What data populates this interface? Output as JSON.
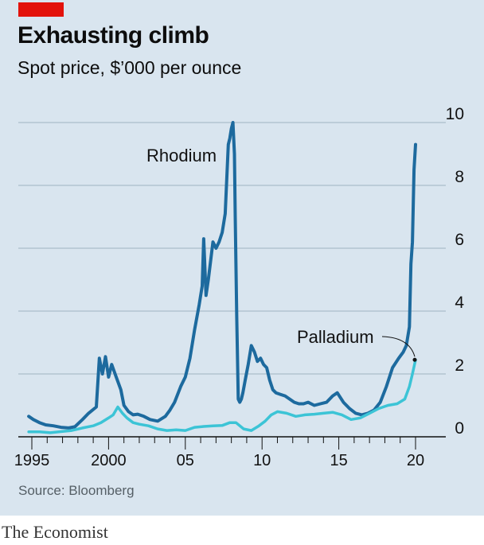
{
  "header": {
    "title": "Exhausting climb",
    "subtitle": "Spot price, $’000 per ounce"
  },
  "source": "Source: Bloomberg",
  "footer": "The Economist",
  "colors": {
    "tag": "#e3120b",
    "rhodium": "#1d6a9e",
    "palladium": "#3cc4d6",
    "grid": "#9fb2c2",
    "background": "#d9e5ef"
  },
  "chart_data": {
    "type": "line",
    "title": "Exhausting climb",
    "subtitle": "Spot price, $’000 per ounce",
    "ylabel": "$’000 per ounce",
    "ylim": [
      0,
      10
    ],
    "xlim": [
      1994.7,
      2020.0
    ],
    "y_ticks": [
      "0",
      "2",
      "4",
      "6",
      "8",
      "10"
    ],
    "y_tick_values": [
      0,
      2,
      4,
      6,
      8,
      10
    ],
    "y_axis_side": "right",
    "x_ticks": [
      "1995",
      "2000",
      "05",
      "10",
      "15",
      "20"
    ],
    "x_tick_values": [
      1995,
      2000,
      2005,
      2010,
      2015,
      2020
    ],
    "grid": true,
    "legend": "inline labels",
    "series": [
      {
        "name": "Rhodium",
        "color": "#1d6a9e",
        "x": [
          1994.8,
          1995.1,
          1995.5,
          1995.9,
          1996.4,
          1996.9,
          1997.4,
          1997.8,
          1998.3,
          1998.7,
          1999.2,
          1999.4,
          1999.6,
          1999.8,
          2000.0,
          2000.2,
          2000.5,
          2000.8,
          2001.0,
          2001.3,
          2001.6,
          2001.9,
          2002.3,
          2002.7,
          2003.2,
          2003.7,
          2004.0,
          2004.3,
          2004.7,
          2005.0,
          2005.3,
          2005.6,
          2005.9,
          2006.1,
          2006.2,
          2006.35,
          2006.5,
          2006.8,
          2007.0,
          2007.2,
          2007.4,
          2007.6,
          2007.8,
          2007.9,
          2008.0,
          2008.1,
          2008.2,
          2008.25,
          2008.35,
          2008.45,
          2008.55,
          2008.65,
          2008.75,
          2008.9,
          2009.1,
          2009.3,
          2009.5,
          2009.7,
          2009.9,
          2010.1,
          2010.3,
          2010.5,
          2010.7,
          2010.9,
          2011.2,
          2011.5,
          2011.8,
          2012.1,
          2012.4,
          2012.7,
          2013.0,
          2013.4,
          2013.8,
          2014.2,
          2014.6,
          2014.9,
          2015.3,
          2015.7,
          2016.1,
          2016.5,
          2016.9,
          2017.3,
          2017.7,
          2018.1,
          2018.5,
          2018.9,
          2019.2,
          2019.4,
          2019.6,
          2019.7,
          2019.8,
          2019.9,
          2020.0
        ],
        "values": [
          0.65,
          0.55,
          0.45,
          0.38,
          0.35,
          0.3,
          0.28,
          0.32,
          0.55,
          0.75,
          0.95,
          2.5,
          2.0,
          2.55,
          1.9,
          2.3,
          1.9,
          1.5,
          1.0,
          0.8,
          0.7,
          0.72,
          0.65,
          0.55,
          0.5,
          0.65,
          0.85,
          1.1,
          1.6,
          1.9,
          2.5,
          3.4,
          4.2,
          4.8,
          6.3,
          4.5,
          5.0,
          6.2,
          6.0,
          6.2,
          6.5,
          7.1,
          9.3,
          9.5,
          9.8,
          10.0,
          9.0,
          7.0,
          3.8,
          1.2,
          1.1,
          1.2,
          1.4,
          1.8,
          2.3,
          2.9,
          2.7,
          2.4,
          2.5,
          2.3,
          2.2,
          1.8,
          1.5,
          1.4,
          1.35,
          1.3,
          1.2,
          1.1,
          1.05,
          1.05,
          1.1,
          1.0,
          1.05,
          1.1,
          1.3,
          1.4,
          1.1,
          0.9,
          0.75,
          0.7,
          0.75,
          0.85,
          1.1,
          1.6,
          2.2,
          2.5,
          2.7,
          2.9,
          3.5,
          5.5,
          6.2,
          8.5,
          9.3
        ]
      },
      {
        "name": "Palladium",
        "color": "#3cc4d6",
        "x": [
          1994.8,
          1995.5,
          1996.2,
          1997.0,
          1997.6,
          1998.3,
          1999.0,
          1999.5,
          2000.0,
          2000.3,
          2000.6,
          2000.9,
          2001.2,
          2001.6,
          2002.0,
          2002.6,
          2003.2,
          2003.8,
          2004.4,
          2005.0,
          2005.6,
          2006.2,
          2006.8,
          2007.4,
          2007.9,
          2008.3,
          2008.8,
          2009.3,
          2009.8,
          2010.2,
          2010.6,
          2011.0,
          2011.6,
          2012.2,
          2012.8,
          2013.4,
          2014.0,
          2014.6,
          2015.2,
          2015.8,
          2016.4,
          2017.0,
          2017.6,
          2018.2,
          2018.8,
          2019.3,
          2019.6,
          2019.8,
          2020.0
        ],
        "values": [
          0.16,
          0.16,
          0.13,
          0.17,
          0.2,
          0.28,
          0.35,
          0.45,
          0.6,
          0.7,
          0.95,
          0.75,
          0.6,
          0.45,
          0.4,
          0.35,
          0.25,
          0.2,
          0.22,
          0.2,
          0.3,
          0.33,
          0.35,
          0.36,
          0.45,
          0.45,
          0.25,
          0.2,
          0.35,
          0.5,
          0.7,
          0.8,
          0.75,
          0.65,
          0.7,
          0.72,
          0.75,
          0.78,
          0.7,
          0.55,
          0.6,
          0.75,
          0.9,
          1.0,
          1.05,
          1.2,
          1.6,
          2.0,
          2.45
        ]
      }
    ],
    "annotations": [
      {
        "text": "Rhodium",
        "series": "Rhodium"
      },
      {
        "text": "Palladium",
        "series": "Palladium"
      }
    ]
  }
}
